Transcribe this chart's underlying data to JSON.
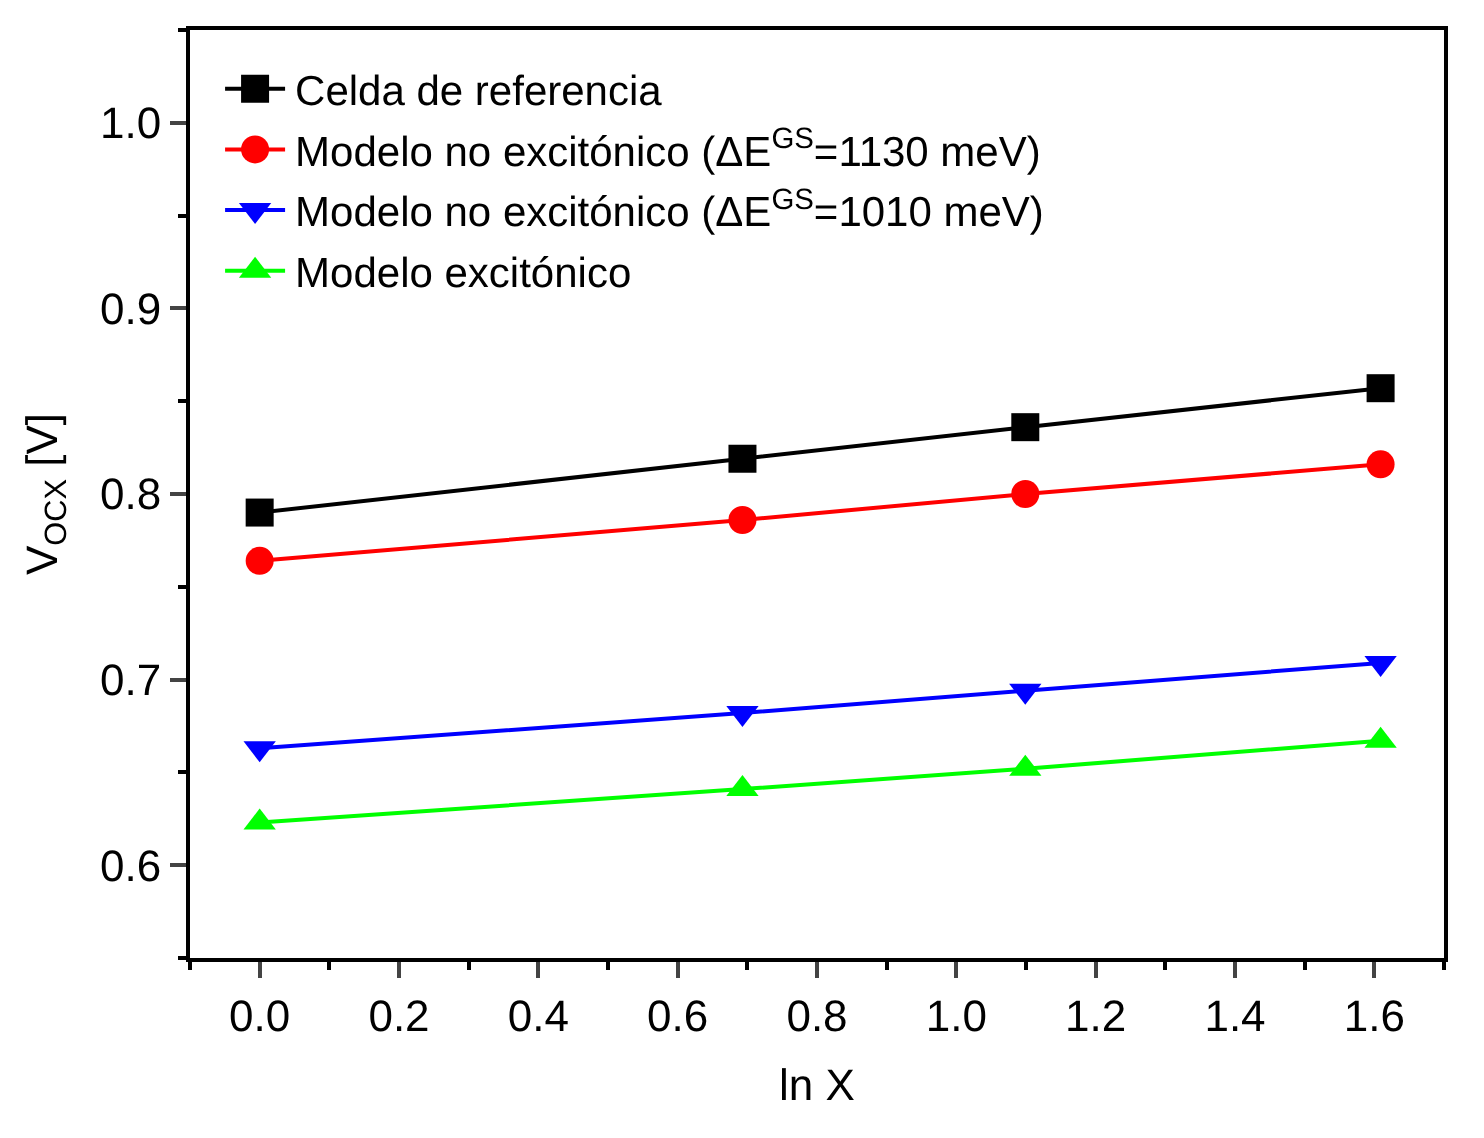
{
  "chart_data": {
    "type": "line",
    "xlabel": "ln X",
    "ylabel": "V$_{OCX}$ [V]",
    "x": [
      0,
      0.693,
      1.099,
      1.609
    ],
    "series": [
      {
        "name": "Celda de referencia",
        "color": "#000000",
        "marker": "square",
        "values": [
          0.79,
          0.819,
          0.836,
          0.857
        ]
      },
      {
        "name": "Modelo no excitónico (ΔE$^{GS}$=1130 meV)",
        "color": "#ff0000",
        "marker": "circle",
        "values": [
          0.764,
          0.786,
          0.8,
          0.816
        ]
      },
      {
        "name": "Modelo no excitónico (ΔE$^{GS}$=1010 meV)",
        "color": "#0000ff",
        "marker": "triangle-down",
        "values": [
          0.663,
          0.682,
          0.694,
          0.709
        ]
      },
      {
        "name": "Modelo excitónico",
        "color": "#00ff00",
        "marker": "triangle",
        "values": [
          0.623,
          0.641,
          0.652,
          0.667
        ]
      }
    ],
    "xlim": [
      -0.1,
      1.7
    ],
    "xticks": [
      {
        "value": 0,
        "label": "0.0"
      },
      0.2,
      0.4,
      0.6,
      0.8,
      {
        "value": 1,
        "label": "1.0"
      },
      1.2,
      1.4,
      1.6
    ],
    "ylim": [
      0.55,
      1.05
    ],
    "yticks": [
      0.6,
      0.7,
      0.8,
      0.9,
      {
        "value": 1,
        "label": "1.0"
      }
    ],
    "legend": "top left",
    "line_style": "solid"
  }
}
